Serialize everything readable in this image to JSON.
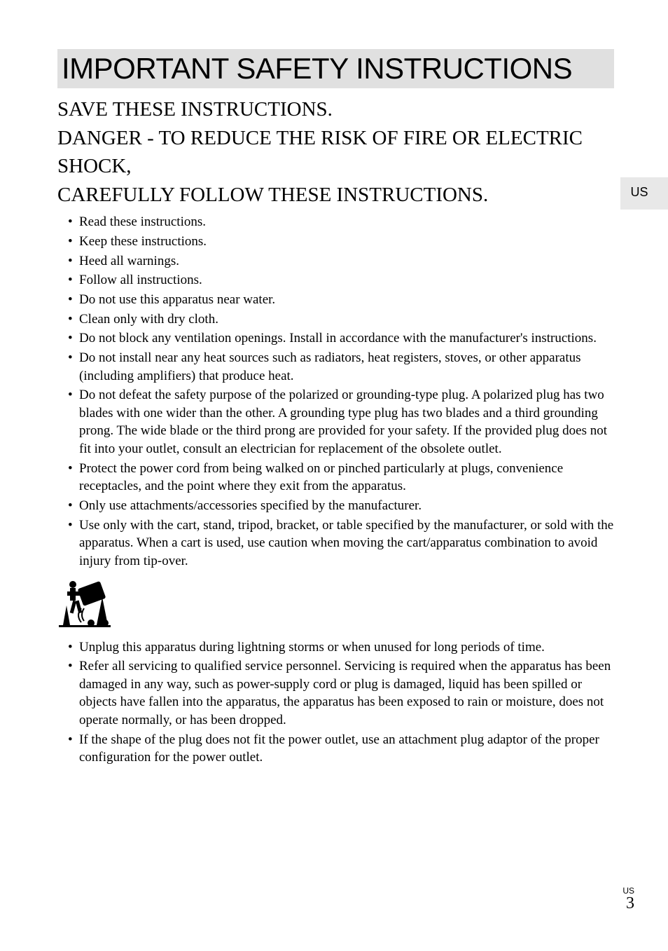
{
  "title": "IMPORTANT SAFETY INSTRUCTIONS",
  "subtitle": "SAVE THESE INSTRUCTIONS.\nDANGER - TO REDUCE THE RISK OF FIRE OR ELECTRIC SHOCK,\nCAREFULLY FOLLOW THESE INSTRUCTIONS.",
  "side_tab": "US",
  "bullets_top": [
    "Read these instructions.",
    "Keep these instructions.",
    "Heed all warnings.",
    "Follow all instructions.",
    "Do not use this apparatus near water.",
    "Clean only with dry cloth.",
    "Do not block any ventilation openings. Install in accordance with the manufacturer's instructions.",
    "Do not install near any heat sources such as radiators, heat registers, stoves, or other apparatus (including amplifiers) that produce heat.",
    "Do not defeat the safety purpose of the polarized or grounding-type plug. A polarized plug has two blades with one wider than the other. A grounding type plug has two blades and a third grounding prong. The wide blade or the third prong are provided for your safety. If the provided plug does not fit into your outlet, consult an electrician for replacement of the obsolete outlet.",
    "Protect the power cord from being walked on or pinched particularly at plugs, convenience receptacles, and the point where they exit from the apparatus.",
    "Only use attachments/accessories specified by the manufacturer.",
    "Use only with the cart, stand, tripod, bracket, or table specified by the manufacturer, or sold with the apparatus. When a cart is used, use caution when moving the cart/apparatus combination to avoid injury from tip-over."
  ],
  "bullets_bottom": [
    "Unplug this apparatus during lightning storms or when unused for long periods of time.",
    "Refer all servicing to qualified service personnel. Servicing is required when the apparatus has been damaged in any way, such as power-supply cord or plug is damaged, liquid has been spilled or objects have fallen into the apparatus, the apparatus has been exposed to rain or moisture, does not operate normally, or has been dropped.",
    "If the shape of the plug does not fit the power outlet, use an attachment plug adaptor of the proper configuration for the power outlet."
  ],
  "footer": {
    "region": "US",
    "page": "3"
  },
  "colors": {
    "background": "#ffffff",
    "title_bg": "#e0e0e0",
    "side_tab_bg": "#e8e8e8",
    "text": "#000000"
  },
  "fonts": {
    "title_family": "Arial, Helvetica, sans-serif",
    "body_family": "Georgia, 'Times New Roman', serif",
    "title_size": 42,
    "subtitle_size": 29,
    "body_size": 19
  }
}
